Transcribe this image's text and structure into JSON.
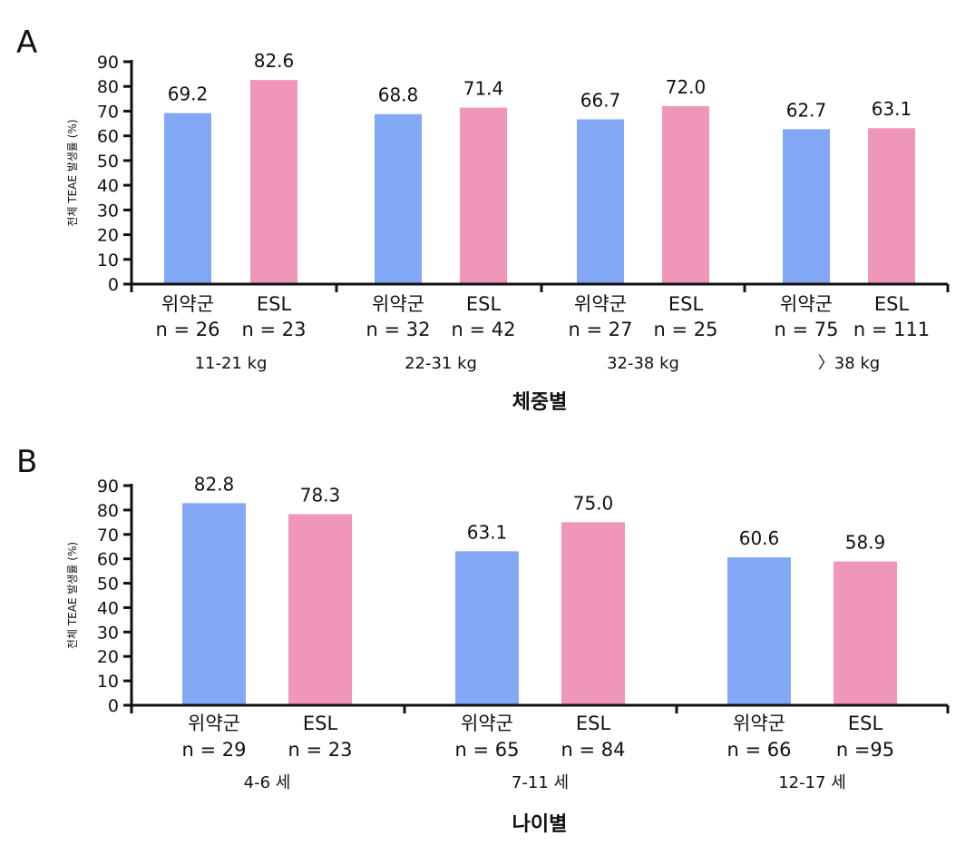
{
  "colors": {
    "placebo": "#82a8f5",
    "esl": "#f096b8",
    "axis": "#111111"
  },
  "chart_data": [
    {
      "panel": "A",
      "type": "bar",
      "ylabel": "전체 TEAE 발생률 (%)",
      "ylim": [
        0,
        90
      ],
      "yticks": [
        0,
        10,
        20,
        30,
        40,
        50,
        60,
        70,
        80,
        90
      ],
      "xlabel": "체중별",
      "series": [
        {
          "name": "위약군",
          "color": "#82a8f5"
        },
        {
          "name": "ESL",
          "color": "#f096b8"
        }
      ],
      "groups": [
        {
          "label": "11-21 kg",
          "bars": [
            {
              "series": "위약군",
              "value": 69.2,
              "label": "69.2",
              "n": "n = 26"
            },
            {
              "series": "ESL",
              "value": 82.6,
              "label": "82.6",
              "n": "n = 23"
            }
          ]
        },
        {
          "label": "22-31 kg",
          "bars": [
            {
              "series": "위약군",
              "value": 68.8,
              "label": "68.8",
              "n": "n = 32"
            },
            {
              "series": "ESL",
              "value": 71.4,
              "label": "71.4",
              "n": "n = 42"
            }
          ]
        },
        {
          "label": "32-38 kg",
          "bars": [
            {
              "series": "위약군",
              "value": 66.7,
              "label": "66.7",
              "n": "n = 27"
            },
            {
              "series": "ESL",
              "value": 72.0,
              "label": "72.0",
              "n": "n = 25"
            }
          ]
        },
        {
          "label": "〉38 kg",
          "bars": [
            {
              "series": "위약군",
              "value": 62.7,
              "label": "62.7",
              "n": "n = 75"
            },
            {
              "series": "ESL",
              "value": 63.1,
              "label": "63.1",
              "n": "n = 111"
            }
          ]
        }
      ]
    },
    {
      "panel": "B",
      "type": "bar",
      "ylabel": "전체 TEAE 발생률 (%)",
      "ylim": [
        0,
        90
      ],
      "yticks": [
        0,
        10,
        20,
        30,
        40,
        50,
        60,
        70,
        80,
        90
      ],
      "xlabel": "나이별",
      "series": [
        {
          "name": "위약군",
          "color": "#82a8f5"
        },
        {
          "name": "ESL",
          "color": "#f096b8"
        }
      ],
      "groups": [
        {
          "label": "4-6 세",
          "bars": [
            {
              "series": "위약군",
              "value": 82.8,
              "label": "82.8",
              "n": "n = 29"
            },
            {
              "series": "ESL",
              "value": 78.3,
              "label": "78.3",
              "n": "n = 23"
            }
          ]
        },
        {
          "label": "7-11 세",
          "bars": [
            {
              "series": "위약군",
              "value": 63.1,
              "label": "63.1",
              "n": "n = 65"
            },
            {
              "series": "ESL",
              "value": 75.0,
              "label": "75.0",
              "n": "n = 84"
            }
          ]
        },
        {
          "label": "12-17 세",
          "bars": [
            {
              "series": "위약군",
              "value": 60.6,
              "label": "60.6",
              "n": "n = 66"
            },
            {
              "series": "ESL",
              "value": 58.9,
              "label": "58.9",
              "n": "n =95"
            }
          ]
        }
      ]
    }
  ]
}
